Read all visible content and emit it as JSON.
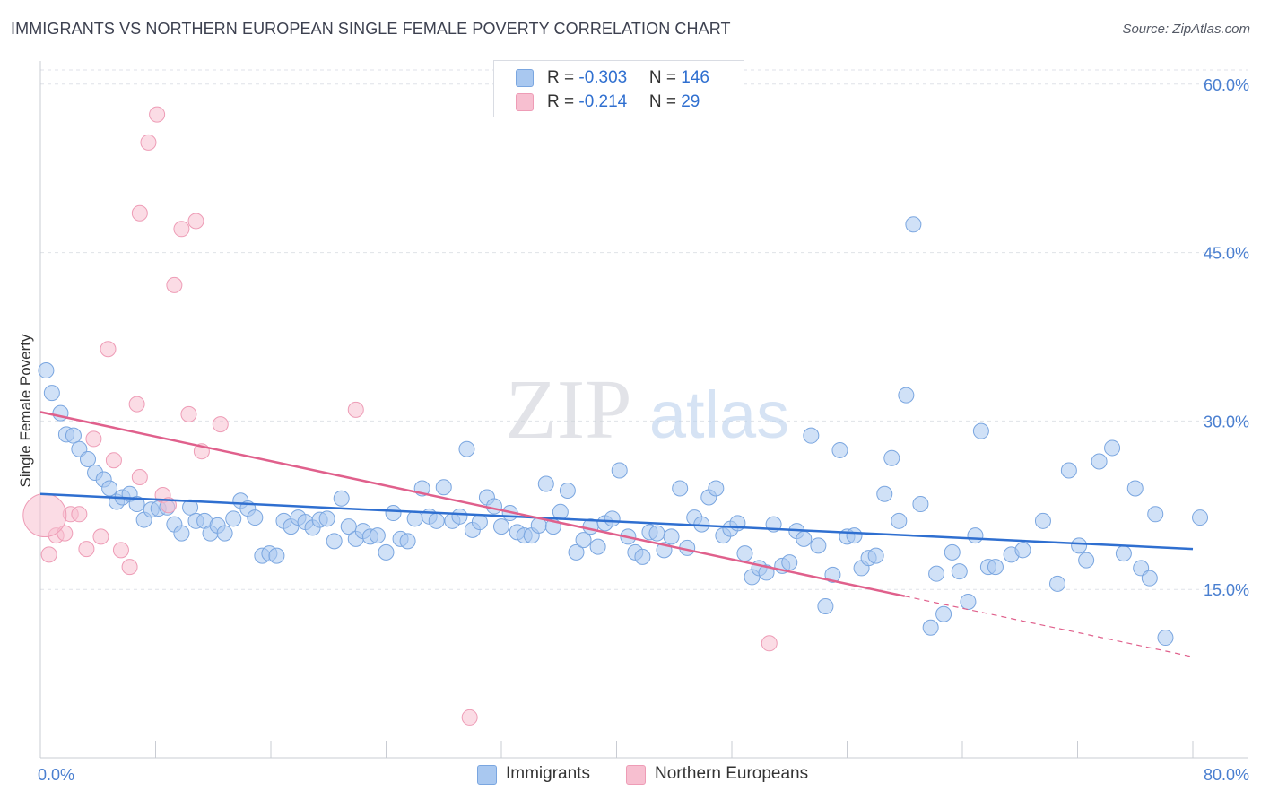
{
  "header": {
    "title": "IMMIGRANTS VS NORTHERN EUROPEAN SINGLE FEMALE POVERTY CORRELATION CHART",
    "source": "Source: ZipAtlas.com"
  },
  "watermark": {
    "zip": "ZIP",
    "atlas": "atlas"
  },
  "legend": {
    "rows": [
      {
        "r_label": "R = ",
        "r_value": "-0.303",
        "n_label": "N = ",
        "n_value": "146"
      },
      {
        "r_label": "R = ",
        "r_value": "-0.214",
        "n_label": "N = ",
        "n_value": "29"
      }
    ],
    "bottom": [
      "Immigrants",
      "Northern Europeans"
    ]
  },
  "colors": {
    "immigrants_fill": "#a9c8f0",
    "immigrants_stroke": "#7aa6e0",
    "immigrants_line": "#2f6fd0",
    "northern_fill": "#f7bfd0",
    "northern_stroke": "#ee9cb6",
    "northern_line": "#e0608c",
    "tick_text": "#4a7fd0",
    "grid": "#dfe2e8"
  },
  "chart_data": {
    "type": "scatter",
    "title": "IMMIGRANTS VS NORTHERN EUROPEAN SINGLE FEMALE POVERTY CORRELATION CHART",
    "xlabel": "",
    "ylabel": "Single Female Poverty",
    "xlim": [
      0,
      80
    ],
    "ylim": [
      0,
      61.5
    ],
    "x_tick_labels": [
      "0.0%",
      "80.0%"
    ],
    "y_ticks": [
      15,
      30,
      45,
      60
    ],
    "y_tick_labels": [
      "15.0%",
      "30.0%",
      "45.0%",
      "60.0%"
    ],
    "grid": "horizontal dashed",
    "legend_position": "top-center",
    "series": [
      {
        "name": "Immigrants",
        "r": -0.303,
        "n": 146,
        "trend": {
          "x": [
            0,
            80
          ],
          "y": [
            23.5,
            18.6
          ]
        },
        "points": [
          [
            0.4,
            34.5
          ],
          [
            0.8,
            32.5
          ],
          [
            1.4,
            30.7
          ],
          [
            1.8,
            28.8
          ],
          [
            2.3,
            28.7
          ],
          [
            2.7,
            27.5
          ],
          [
            3.3,
            26.6
          ],
          [
            3.8,
            25.4
          ],
          [
            4.4,
            24.8
          ],
          [
            4.8,
            24.0
          ],
          [
            5.3,
            22.8
          ],
          [
            5.7,
            23.2
          ],
          [
            6.2,
            23.5
          ],
          [
            6.7,
            22.6
          ],
          [
            7.2,
            21.2
          ],
          [
            7.7,
            22.1
          ],
          [
            8.2,
            22.2
          ],
          [
            8.8,
            22.3
          ],
          [
            9.3,
            20.8
          ],
          [
            9.8,
            20.0
          ],
          [
            10.4,
            22.3
          ],
          [
            10.8,
            21.1
          ],
          [
            11.4,
            21.1
          ],
          [
            11.8,
            20.0
          ],
          [
            12.3,
            20.7
          ],
          [
            12.8,
            20.0
          ],
          [
            13.4,
            21.3
          ],
          [
            13.9,
            22.9
          ],
          [
            14.4,
            22.2
          ],
          [
            14.9,
            21.4
          ],
          [
            15.4,
            18.0
          ],
          [
            15.9,
            18.2
          ],
          [
            16.4,
            18.0
          ],
          [
            16.9,
            21.1
          ],
          [
            17.4,
            20.6
          ],
          [
            17.9,
            21.4
          ],
          [
            18.4,
            21.0
          ],
          [
            18.9,
            20.5
          ],
          [
            19.4,
            21.2
          ],
          [
            19.9,
            21.3
          ],
          [
            20.4,
            19.3
          ],
          [
            20.9,
            23.1
          ],
          [
            21.4,
            20.6
          ],
          [
            21.9,
            19.5
          ],
          [
            22.4,
            20.2
          ],
          [
            22.9,
            19.7
          ],
          [
            23.4,
            19.8
          ],
          [
            24.0,
            18.3
          ],
          [
            24.5,
            21.8
          ],
          [
            25.0,
            19.5
          ],
          [
            25.5,
            19.3
          ],
          [
            26.0,
            21.3
          ],
          [
            26.5,
            24.0
          ],
          [
            27.0,
            21.5
          ],
          [
            27.5,
            21.1
          ],
          [
            28.0,
            24.1
          ],
          [
            28.6,
            21.1
          ],
          [
            29.1,
            21.5
          ],
          [
            29.6,
            27.5
          ],
          [
            30.0,
            20.3
          ],
          [
            30.5,
            21.0
          ],
          [
            31.0,
            23.2
          ],
          [
            31.5,
            22.4
          ],
          [
            32.0,
            20.6
          ],
          [
            32.6,
            21.8
          ],
          [
            33.1,
            20.1
          ],
          [
            33.6,
            19.8
          ],
          [
            34.1,
            19.8
          ],
          [
            34.6,
            20.7
          ],
          [
            35.1,
            24.4
          ],
          [
            35.6,
            20.6
          ],
          [
            36.1,
            21.9
          ],
          [
            36.6,
            23.8
          ],
          [
            37.2,
            18.3
          ],
          [
            37.7,
            19.4
          ],
          [
            38.2,
            20.6
          ],
          [
            38.7,
            18.8
          ],
          [
            39.2,
            20.9
          ],
          [
            39.7,
            21.3
          ],
          [
            40.2,
            25.6
          ],
          [
            40.8,
            19.7
          ],
          [
            41.3,
            18.3
          ],
          [
            41.8,
            17.9
          ],
          [
            42.3,
            20.1
          ],
          [
            42.8,
            20.0
          ],
          [
            43.3,
            18.5
          ],
          [
            43.8,
            19.7
          ],
          [
            44.4,
            24.0
          ],
          [
            44.9,
            18.7
          ],
          [
            45.4,
            21.4
          ],
          [
            45.9,
            20.8
          ],
          [
            46.4,
            23.2
          ],
          [
            46.9,
            24.0
          ],
          [
            47.4,
            19.8
          ],
          [
            47.9,
            20.4
          ],
          [
            48.4,
            20.9
          ],
          [
            48.9,
            18.2
          ],
          [
            49.4,
            16.1
          ],
          [
            49.9,
            16.9
          ],
          [
            50.4,
            16.5
          ],
          [
            50.9,
            20.8
          ],
          [
            51.5,
            17.1
          ],
          [
            52.0,
            17.4
          ],
          [
            52.5,
            20.2
          ],
          [
            53.0,
            19.5
          ],
          [
            53.5,
            28.7
          ],
          [
            54.0,
            18.9
          ],
          [
            54.5,
            13.5
          ],
          [
            55.0,
            16.3
          ],
          [
            55.5,
            27.4
          ],
          [
            56.0,
            19.7
          ],
          [
            56.5,
            19.8
          ],
          [
            57.0,
            16.9
          ],
          [
            57.5,
            17.8
          ],
          [
            58.0,
            18.0
          ],
          [
            58.6,
            23.5
          ],
          [
            59.1,
            26.7
          ],
          [
            59.6,
            21.1
          ],
          [
            60.1,
            32.3
          ],
          [
            60.6,
            47.5
          ],
          [
            61.1,
            22.6
          ],
          [
            61.8,
            11.6
          ],
          [
            62.2,
            16.4
          ],
          [
            62.7,
            12.8
          ],
          [
            63.3,
            18.3
          ],
          [
            63.8,
            16.6
          ],
          [
            64.4,
            13.9
          ],
          [
            64.9,
            19.8
          ],
          [
            65.3,
            29.1
          ],
          [
            65.8,
            17.0
          ],
          [
            66.3,
            17.0
          ],
          [
            67.4,
            18.1
          ],
          [
            68.2,
            18.5
          ],
          [
            69.6,
            21.1
          ],
          [
            70.6,
            15.5
          ],
          [
            71.4,
            25.6
          ],
          [
            72.1,
            18.9
          ],
          [
            72.6,
            17.6
          ],
          [
            73.5,
            26.4
          ],
          [
            74.4,
            27.6
          ],
          [
            75.2,
            18.2
          ],
          [
            76.0,
            24.0
          ],
          [
            76.4,
            16.9
          ],
          [
            77.0,
            16.0
          ],
          [
            77.4,
            21.7
          ],
          [
            78.1,
            10.7
          ],
          [
            80.5,
            21.4
          ]
        ]
      },
      {
        "name": "Northern Europeans",
        "r": -0.214,
        "n": 29,
        "trend": {
          "x": [
            0,
            60
          ],
          "y": [
            30.8,
            14.4
          ]
        },
        "trend_dashed_extension": {
          "x": [
            60,
            80
          ],
          "y": [
            14.4,
            9.0
          ]
        },
        "points": [
          [
            0.6,
            18.1
          ],
          [
            1.1,
            19.8
          ],
          [
            1.7,
            20.0
          ],
          [
            2.1,
            21.7
          ],
          [
            2.7,
            21.7
          ],
          [
            3.2,
            18.6
          ],
          [
            3.7,
            28.4
          ],
          [
            4.2,
            19.7
          ],
          [
            4.7,
            36.4
          ],
          [
            5.1,
            26.5
          ],
          [
            5.6,
            18.5
          ],
          [
            6.2,
            17.0
          ],
          [
            6.7,
            31.5
          ],
          [
            6.9,
            25.0
          ],
          [
            6.9,
            48.5
          ],
          [
            7.5,
            54.8
          ],
          [
            8.1,
            57.3
          ],
          [
            8.5,
            23.4
          ],
          [
            8.9,
            22.5
          ],
          [
            9.3,
            42.1
          ],
          [
            9.8,
            47.1
          ],
          [
            10.3,
            30.6
          ],
          [
            10.8,
            47.8
          ],
          [
            11.2,
            27.3
          ],
          [
            12.5,
            29.7
          ],
          [
            21.9,
            31.0
          ],
          [
            29.8,
            3.6
          ],
          [
            50.6,
            10.2
          ],
          [
            0.3,
            21.6
          ]
        ]
      }
    ]
  }
}
